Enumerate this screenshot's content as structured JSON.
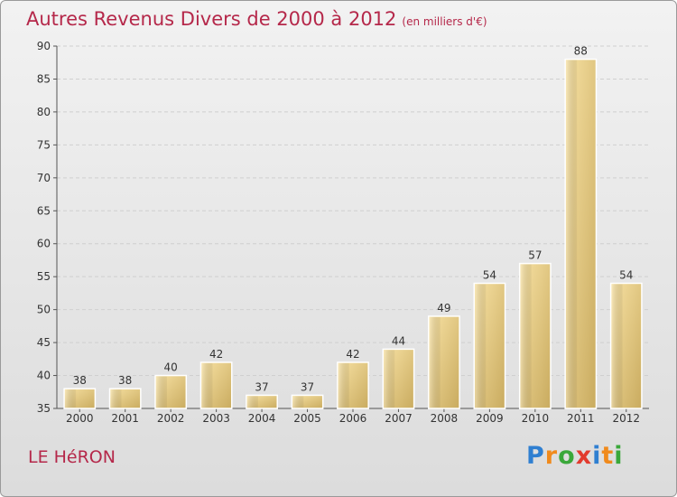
{
  "header": {
    "title": "Autres Revenus Divers de 2000 à 2012",
    "unit": "(en milliers d'€)"
  },
  "footer": {
    "commune": "LE HéRON",
    "logo_letters": [
      {
        "char": "P",
        "color": "#2f7fd1"
      },
      {
        "char": "r",
        "color": "#f08a1c"
      },
      {
        "char": "o",
        "color": "#3aa83a"
      },
      {
        "char": "x",
        "color": "#e23b2e"
      },
      {
        "char": "i",
        "color": "#2f7fd1"
      },
      {
        "char": "t",
        "color": "#f08a1c"
      },
      {
        "char": "i",
        "color": "#3aa83a"
      }
    ]
  },
  "colors": {
    "title": "#b5284a",
    "bar_light": "#f5dc9a",
    "bar_dark": "#c8aa5e"
  },
  "chart_data": {
    "type": "bar",
    "title": "Autres Revenus Divers de 2000 à 2012",
    "xlabel": "",
    "ylabel": "",
    "categories": [
      "2000",
      "2001",
      "2002",
      "2003",
      "2004",
      "2005",
      "2006",
      "2007",
      "2008",
      "2009",
      "2010",
      "2011",
      "2012"
    ],
    "values": [
      38,
      38,
      40,
      42,
      37,
      37,
      42,
      44,
      49,
      54,
      57,
      88,
      54
    ],
    "ylim": [
      35,
      90
    ],
    "yticks": [
      35,
      40,
      45,
      50,
      55,
      60,
      65,
      70,
      75,
      80,
      85,
      90
    ]
  }
}
